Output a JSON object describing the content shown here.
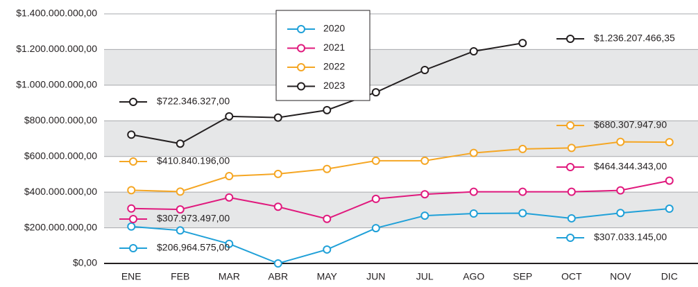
{
  "chart_data": {
    "type": "line",
    "categories": [
      "ENE",
      "FEB",
      "MAR",
      "ABR",
      "MAY",
      "JUN",
      "JUL",
      "AGO",
      "SEP",
      "OCT",
      "NOV",
      "DIC"
    ],
    "ylim": [
      0,
      1400000000
    ],
    "yticks": [
      {
        "value": 0,
        "label": "$0,00"
      },
      {
        "value": 200000000,
        "label": "$200.000.000,00"
      },
      {
        "value": 400000000,
        "label": "$400.000.000,00"
      },
      {
        "value": 600000000,
        "label": "$600.000.000,00"
      },
      {
        "value": 800000000,
        "label": "$800.000.000,00"
      },
      {
        "value": 1000000000,
        "label": "$1.000.000.000,00"
      },
      {
        "value": 1200000000,
        "label": "$1.200.000.000,00"
      },
      {
        "value": 1400000000,
        "label": "$1.400.000.000,00"
      }
    ],
    "grid": true,
    "series": [
      {
        "name": "2020",
        "color": "#1fa0d8",
        "values": [
          206964575,
          185000000,
          110000000,
          0,
          78000000,
          198000000,
          268000000,
          280000000,
          282000000,
          253000000,
          283000000,
          307033145
        ],
        "value_labels": [
          "$206,964.575,00",
          null,
          null,
          null,
          null,
          null,
          null,
          null,
          null,
          null,
          null,
          "$307.033.145,00"
        ]
      },
      {
        "name": "2021",
        "color": "#e0197d",
        "values": [
          307973497,
          303000000,
          370000000,
          318000000,
          250000000,
          362000000,
          388000000,
          402000000,
          402000000,
          402000000,
          410000000,
          464344343
        ],
        "value_labels": [
          "$307.973.497,00",
          null,
          null,
          null,
          null,
          null,
          null,
          null,
          null,
          null,
          null,
          "$464.344.343,00"
        ]
      },
      {
        "name": "2022",
        "color": "#f5a623",
        "values": [
          410840196,
          403000000,
          490000000,
          502000000,
          530000000,
          576000000,
          576000000,
          620000000,
          642000000,
          648000000,
          682000000,
          680307947.9
        ],
        "value_labels": [
          "$410.840.196,00",
          null,
          null,
          null,
          null,
          null,
          null,
          null,
          null,
          null,
          null,
          "$680.307.947.90"
        ]
      },
      {
        "name": "2023",
        "color": "#231f20",
        "values": [
          722346327,
          672000000,
          825000000,
          818000000,
          860000000,
          960000000,
          1085000000,
          1190000000,
          1236207466.35,
          null,
          null,
          null
        ],
        "value_labels": [
          "$722.346.327,00",
          null,
          null,
          null,
          null,
          null,
          null,
          null,
          "$1.236.207.466,35",
          null,
          null,
          null
        ]
      }
    ]
  }
}
